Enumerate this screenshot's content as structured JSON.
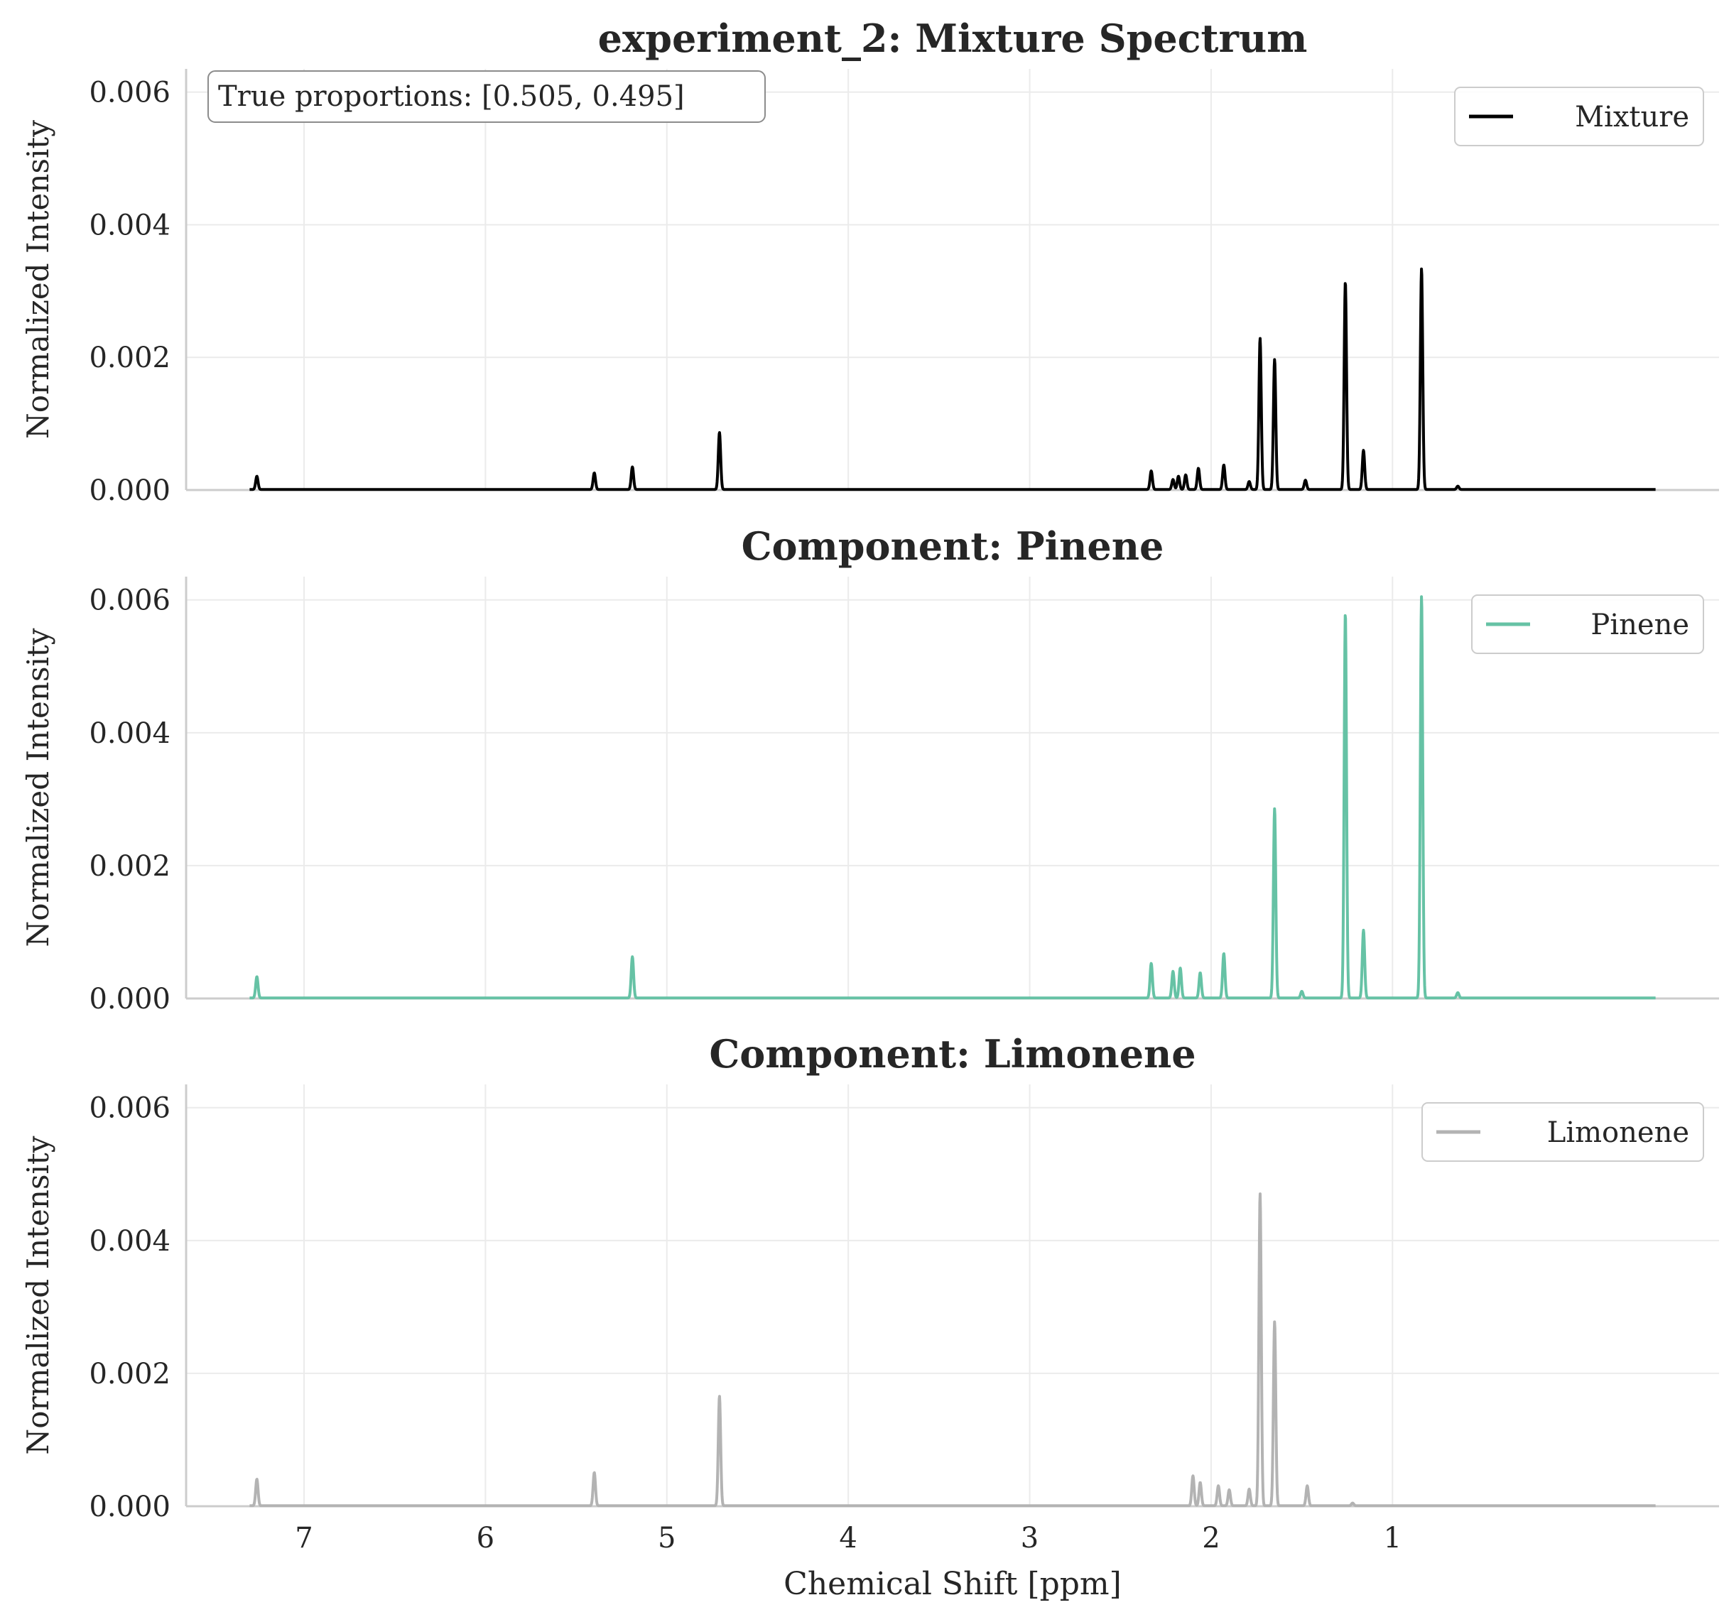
{
  "chart_data": [
    {
      "type": "line",
      "title": "experiment_2: Mixture Spectrum",
      "ylabel": "Normalized Intensity",
      "xlabel": "",
      "xlim": [
        7.65,
        -0.8
      ],
      "ylim": [
        0,
        0.00635
      ],
      "grid": true,
      "legend": "top-right",
      "annotation": "True proportions: [0.505, 0.495]",
      "xticks": [
        "7",
        "6",
        "5",
        "4",
        "3",
        "2",
        "1"
      ],
      "yticks": [
        "0.000",
        "0.002",
        "0.004",
        "0.006"
      ],
      "series": [
        {
          "name": "Mixture",
          "color": "#000000",
          "x_range": [
            7.3,
            -0.45
          ],
          "peaks": [
            {
              "x": 7.26,
              "y": 0.0002
            },
            {
              "x": 5.4,
              "y": 0.00025
            },
            {
              "x": 5.19,
              "y": 0.00034
            },
            {
              "x": 4.71,
              "y": 0.00086
            },
            {
              "x": 2.33,
              "y": 0.00028
            },
            {
              "x": 2.21,
              "y": 0.00015
            },
            {
              "x": 2.18,
              "y": 0.0002
            },
            {
              "x": 2.14,
              "y": 0.00022
            },
            {
              "x": 2.07,
              "y": 0.00032
            },
            {
              "x": 1.93,
              "y": 0.00037
            },
            {
              "x": 1.79,
              "y": 0.00012
            },
            {
              "x": 1.73,
              "y": 0.00228
            },
            {
              "x": 1.65,
              "y": 0.00196
            },
            {
              "x": 1.48,
              "y": 0.00014
            },
            {
              "x": 1.26,
              "y": 0.00313
            },
            {
              "x": 1.16,
              "y": 0.00059
            },
            {
              "x": 0.84,
              "y": 0.00333
            },
            {
              "x": 0.64,
              "y": 5e-05
            }
          ]
        }
      ]
    },
    {
      "type": "line",
      "title": "Component: Pinene",
      "ylabel": "Normalized Intensity",
      "xlabel": "",
      "xlim": [
        7.65,
        -0.8
      ],
      "ylim": [
        0,
        0.00635
      ],
      "grid": true,
      "legend": "top-right",
      "xticks": [
        "7",
        "6",
        "5",
        "4",
        "3",
        "2",
        "1"
      ],
      "yticks": [
        "0.000",
        "0.002",
        "0.004",
        "0.006"
      ],
      "series": [
        {
          "name": "Pinene",
          "color": "#66c2a5",
          "x_range": [
            7.3,
            -0.45
          ],
          "peaks": [
            {
              "x": 7.26,
              "y": 0.00032
            },
            {
              "x": 5.19,
              "y": 0.00062
            },
            {
              "x": 2.33,
              "y": 0.00052
            },
            {
              "x": 2.21,
              "y": 0.0004
            },
            {
              "x": 2.17,
              "y": 0.00045
            },
            {
              "x": 2.06,
              "y": 0.00038
            },
            {
              "x": 1.93,
              "y": 0.00067
            },
            {
              "x": 1.65,
              "y": 0.00285
            },
            {
              "x": 1.5,
              "y": 0.0001
            },
            {
              "x": 1.26,
              "y": 0.0058
            },
            {
              "x": 1.16,
              "y": 0.00102
            },
            {
              "x": 0.84,
              "y": 0.00605
            },
            {
              "x": 0.64,
              "y": 8e-05
            }
          ]
        }
      ]
    },
    {
      "type": "line",
      "title": "Component: Limonene",
      "ylabel": "Normalized Intensity",
      "xlabel": "Chemical Shift [ppm]",
      "xlim": [
        7.65,
        -0.8
      ],
      "ylim": [
        0,
        0.00635
      ],
      "grid": true,
      "legend": "top-right",
      "xticks": [
        "7",
        "6",
        "5",
        "4",
        "3",
        "2",
        "1"
      ],
      "yticks": [
        "0.000",
        "0.002",
        "0.004",
        "0.006"
      ],
      "series": [
        {
          "name": "Limonene",
          "color": "#b3b3b3",
          "x_range": [
            7.3,
            -0.45
          ],
          "peaks": [
            {
              "x": 7.26,
              "y": 0.0004
            },
            {
              "x": 5.4,
              "y": 0.0005
            },
            {
              "x": 4.71,
              "y": 0.00165
            },
            {
              "x": 2.1,
              "y": 0.00045
            },
            {
              "x": 2.06,
              "y": 0.00035
            },
            {
              "x": 1.96,
              "y": 0.0003
            },
            {
              "x": 1.9,
              "y": 0.00024
            },
            {
              "x": 1.79,
              "y": 0.00025
            },
            {
              "x": 1.73,
              "y": 0.0047
            },
            {
              "x": 1.65,
              "y": 0.00277
            },
            {
              "x": 1.47,
              "y": 0.0003
            },
            {
              "x": 1.22,
              "y": 4e-05
            }
          ]
        }
      ]
    }
  ]
}
